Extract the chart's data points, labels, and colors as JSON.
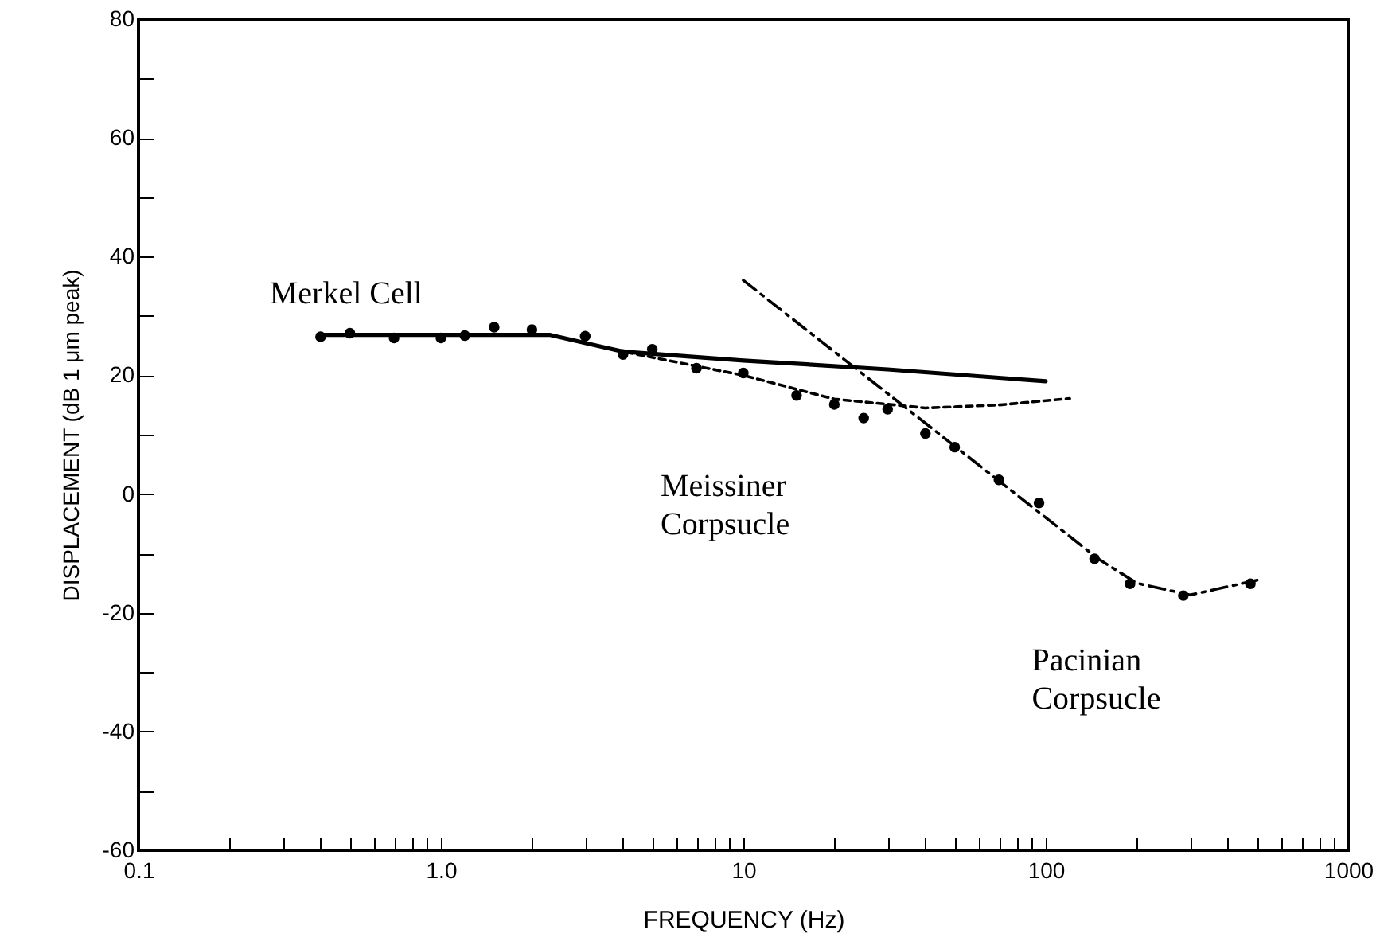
{
  "chart_data": {
    "type": "line",
    "xlabel": "FREQUENCY (Hz)",
    "ylabel": "DISPLACEMENT (dB 1 μm peak)",
    "log": "x",
    "xlim": [
      0.1,
      1000
    ],
    "ylim": [
      -60,
      80
    ],
    "xticks": [
      {
        "value": 0.1,
        "label": "0.1"
      },
      {
        "value": 0.2,
        "label": null
      },
      {
        "value": 0.3,
        "label": null
      },
      {
        "value": 0.4,
        "label": null
      },
      {
        "value": 0.5,
        "label": null
      },
      {
        "value": 0.6,
        "label": null
      },
      {
        "value": 0.7,
        "label": null
      },
      {
        "value": 0.8,
        "label": null
      },
      {
        "value": 0.9,
        "label": null
      },
      {
        "value": 1,
        "label": "1.0"
      },
      {
        "value": 2,
        "label": null
      },
      {
        "value": 3,
        "label": null
      },
      {
        "value": 4,
        "label": null
      },
      {
        "value": 5,
        "label": null
      },
      {
        "value": 6,
        "label": null
      },
      {
        "value": 7,
        "label": null
      },
      {
        "value": 8,
        "label": null
      },
      {
        "value": 9,
        "label": null
      },
      10,
      {
        "value": 20,
        "label": null
      },
      {
        "value": 30,
        "label": null
      },
      {
        "value": 40,
        "label": null
      },
      {
        "value": 50,
        "label": null
      },
      {
        "value": 60,
        "label": null
      },
      {
        "value": 70,
        "label": null
      },
      {
        "value": 80,
        "label": null
      },
      {
        "value": 90,
        "label": null
      },
      100,
      {
        "value": 200,
        "label": null
      },
      {
        "value": 300,
        "label": null
      },
      {
        "value": 400,
        "label": null
      },
      {
        "value": 500,
        "label": null
      },
      {
        "value": 600,
        "label": null
      },
      {
        "value": 700,
        "label": null
      },
      {
        "value": 800,
        "label": null
      },
      {
        "value": 900,
        "label": null
      },
      1000
    ],
    "yticks": [
      -60,
      {
        "value": -50,
        "label": null
      },
      -40,
      {
        "value": -30,
        "label": null
      },
      -20,
      {
        "value": -10,
        "label": null
      },
      0,
      {
        "value": 10,
        "label": null
      },
      20,
      {
        "value": 30,
        "label": null
      },
      40,
      {
        "value": 50,
        "label": null
      },
      60,
      {
        "value": 70,
        "label": null
      },
      80
    ],
    "series": [
      {
        "name": "Merkel Cell",
        "color": "#000000",
        "line_style": "solid",
        "marker": "none",
        "x": [
          0.4,
          2.3,
          4,
          10,
          30,
          100
        ],
        "values": [
          26.8,
          26.8,
          24,
          22.5,
          21,
          19
        ]
      },
      {
        "name": "Meissiner\nCorpsucle",
        "color": "#000000",
        "line_style": "dotted",
        "marker": "none",
        "x": [
          2.3,
          4,
          10,
          20,
          40,
          70,
          120
        ],
        "values": [
          26.8,
          24,
          20,
          16,
          14.5,
          15,
          16.1
        ]
      },
      {
        "name": "Pacinian\nCorpsucle",
        "color": "#000000",
        "line_style": "dashed",
        "marker": "none",
        "x": [
          10,
          150,
          200,
          300,
          500
        ],
        "values": [
          36,
          -11,
          -15,
          -17,
          -14.5
        ]
      },
      {
        "type": "scatter",
        "color": "#000000",
        "marker": "circle",
        "x": [
          0.4,
          0.5,
          0.7,
          1.0,
          1.2,
          1.5,
          2,
          3,
          4,
          5,
          7,
          10,
          15,
          20,
          25,
          30,
          40,
          50,
          70,
          95,
          145,
          190,
          285,
          475
        ],
        "values": [
          26.5,
          27.1,
          26.3,
          26.3,
          26.7,
          28.1,
          27.7,
          26.6,
          23.5,
          24.4,
          21.2,
          20.4,
          16.6,
          15.1,
          12.8,
          14.3,
          10.2,
          7.9,
          2.4,
          -1.5,
          -10.9,
          -15.1,
          -17.1,
          -15.1
        ]
      }
    ]
  }
}
